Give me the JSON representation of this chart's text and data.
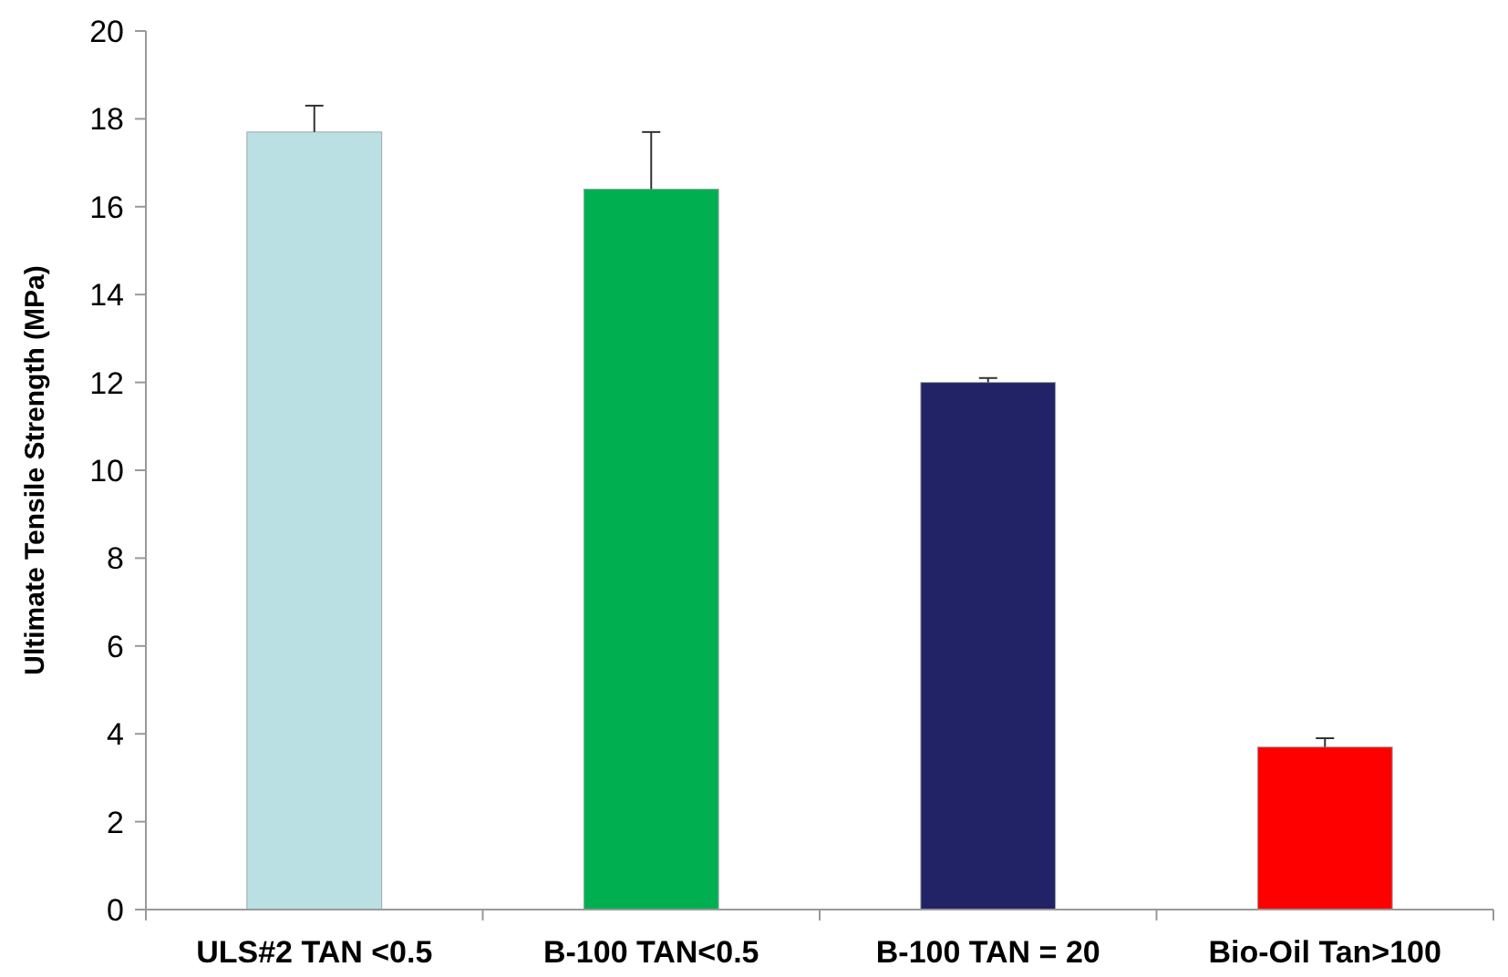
{
  "chart_data": {
    "type": "bar",
    "ylabel": "Ultimate Tensile Strength (MPa)",
    "categories": [
      "ULS#2 TAN <0.5",
      "B-100 TAN<0.5",
      "B-100 TAN = 20",
      "Bio-Oil Tan>100"
    ],
    "values": [
      17.7,
      16.4,
      12.0,
      3.7
    ],
    "colors": [
      "#bae0e3",
      "#00b050",
      "#222266",
      "#ff0000"
    ],
    "errors": [
      [
        17.7,
        18.3
      ],
      [
        16.4,
        17.7
      ],
      [
        12.0,
        12.1
      ],
      [
        3.7,
        3.9
      ]
    ],
    "ylim": [
      0,
      20
    ],
    "yticks": [
      0,
      2,
      4,
      6,
      8,
      10,
      12,
      14,
      16,
      18,
      20
    ],
    "grid": false
  }
}
